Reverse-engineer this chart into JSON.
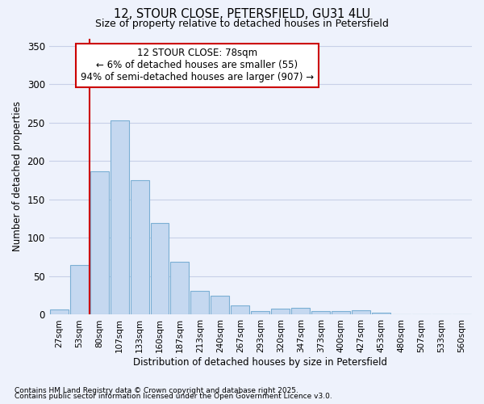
{
  "title_line1": "12, STOUR CLOSE, PETERSFIELD, GU31 4LU",
  "title_line2": "Size of property relative to detached houses in Petersfield",
  "xlabel": "Distribution of detached houses by size in Petersfield",
  "ylabel": "Number of detached properties",
  "categories": [
    "27sqm",
    "53sqm",
    "80sqm",
    "107sqm",
    "133sqm",
    "160sqm",
    "187sqm",
    "213sqm",
    "240sqm",
    "267sqm",
    "293sqm",
    "320sqm",
    "347sqm",
    "373sqm",
    "400sqm",
    "427sqm",
    "453sqm",
    "480sqm",
    "507sqm",
    "533sqm",
    "560sqm"
  ],
  "values": [
    7,
    65,
    187,
    253,
    175,
    119,
    69,
    31,
    25,
    12,
    5,
    8,
    9,
    5,
    5,
    6,
    3,
    1,
    0,
    1,
    1
  ],
  "bar_color": "#c5d8f0",
  "bar_edge_color": "#7bafd4",
  "bg_color": "#eef2fc",
  "grid_color": "#c8d0e8",
  "annotation_line1": "12 STOUR CLOSE: 78sqm",
  "annotation_line2": "← 6% of detached houses are smaller (55)",
  "annotation_line3": "94% of semi-detached houses are larger (907) →",
  "annotation_box_color": "#ffffff",
  "annotation_box_edge": "#cc0000",
  "vline_color": "#cc0000",
  "ylim": [
    0,
    360
  ],
  "yticks": [
    0,
    50,
    100,
    150,
    200,
    250,
    300,
    350
  ],
  "footnote1": "Contains HM Land Registry data © Crown copyright and database right 2025.",
  "footnote2": "Contains public sector information licensed under the Open Government Licence v3.0."
}
